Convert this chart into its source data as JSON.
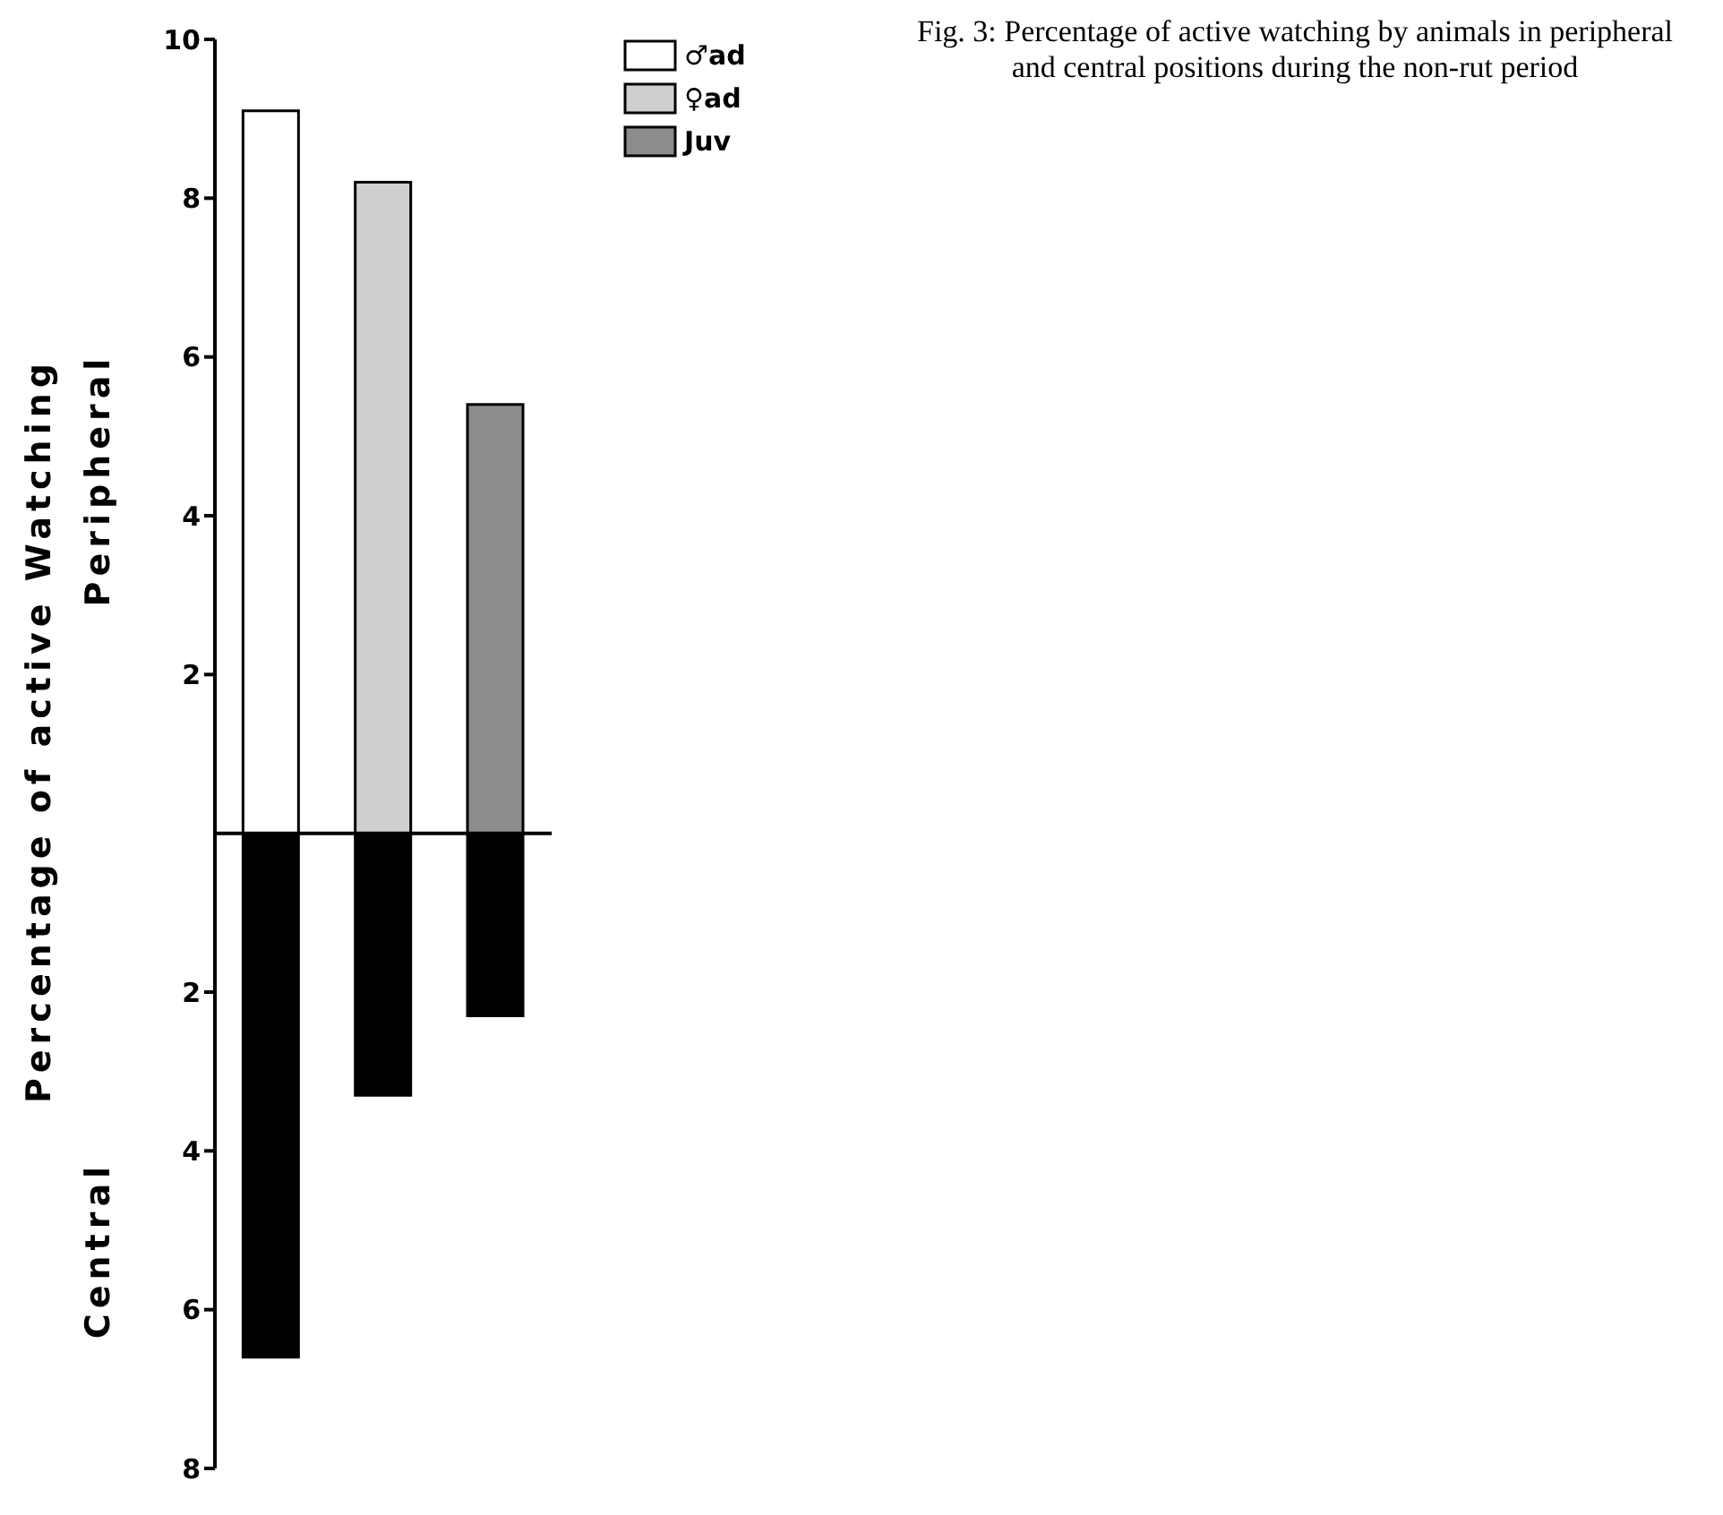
{
  "chart_data": {
    "type": "bar",
    "title": "Fig. 3: Percentage of active watching by animals in peripheral and central positions during the non-rut period",
    "ylabel": "Percentage of active Watching",
    "annotations": [
      "Peripheral",
      "Central"
    ],
    "categories": [
      null,
      null,
      null
    ],
    "stacked": true,
    "series": [
      {
        "name": "♂ad",
        "color": "#ffffff",
        "values": [
          9.1,
          null,
          null
        ]
      },
      {
        "name": "♀ad",
        "color": "#cfcfcf",
        "values": [
          null,
          8.2,
          null
        ]
      },
      {
        "name": "Juv",
        "color": "#8c8c8c",
        "values": [
          null,
          null,
          5.4
        ]
      },
      {
        "color": "#000000",
        "values": [
          -6.6,
          -3.3,
          -2.3
        ]
      }
    ],
    "ylim": [
      -8,
      10
    ],
    "yticks": [
      10,
      8,
      6,
      4,
      2,
      {
        "value": -2,
        "label": "2"
      },
      {
        "value": -4,
        "label": "4"
      },
      {
        "value": -6,
        "label": "6"
      },
      {
        "value": -8,
        "label": "8"
      }
    ],
    "ref_lines": [
      {
        "axis": "y",
        "value": 0,
        "color": "#000000"
      }
    ],
    "legend": "top right",
    "grid": false
  }
}
